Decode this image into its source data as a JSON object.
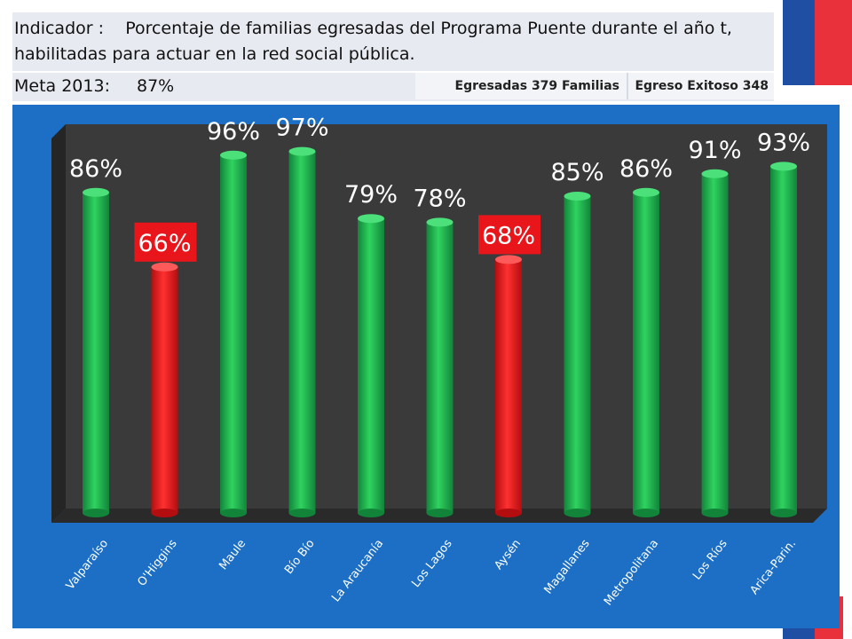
{
  "header": {
    "indicator_label": "Indicador :",
    "indicator_text": "Porcentaje de familias egresadas del Programa Puente durante el año t, habilitadas para actuar en la red social pública.",
    "meta_label": "Meta 2013:",
    "meta_value": "87%",
    "egresadas": "Egresadas 379 Familias",
    "egreso_exitoso": "Egreso Exitoso 348"
  },
  "colors": {
    "background": "#1c6fc4",
    "plot_wall": "#3a3a3a",
    "above_target": "#1fae4b",
    "below_target": "#e8161b",
    "label_box_red": "#e8161b"
  },
  "chart_data": {
    "type": "bar",
    "title": "",
    "xlabel": "",
    "ylabel": "",
    "ylim": [
      0,
      100
    ],
    "grid": false,
    "categories": [
      "Valparaíso",
      "O'Higgins",
      "Maule",
      "Bío Bío",
      "La Araucanía",
      "Los Lagos",
      "Aysén",
      "Magallanes",
      "Metropolitana",
      "Los Ríos",
      "Arica-Parin."
    ],
    "values": [
      86,
      66,
      96,
      97,
      79,
      78,
      68,
      85,
      86,
      91,
      93
    ],
    "data_labels": [
      "86%",
      "66%",
      "96%",
      "97%",
      "79%",
      "78%",
      "68%",
      "85%",
      "86%",
      "91%",
      "93%"
    ],
    "status": [
      "ok",
      "low",
      "ok",
      "ok",
      "ok",
      "ok",
      "low",
      "ok",
      "ok",
      "ok",
      "ok"
    ]
  }
}
